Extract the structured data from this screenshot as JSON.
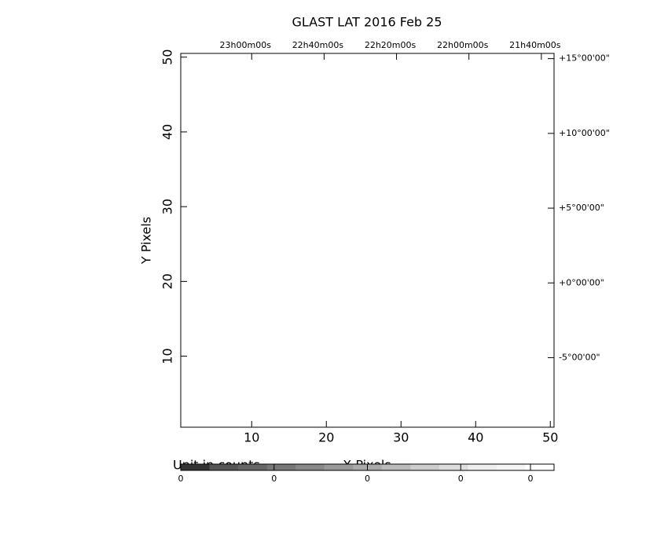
{
  "chart_data": {
    "type": "image",
    "title": "GLAST LAT    2016 Feb 25",
    "xlabel": "X Pixels",
    "ylabel": "Y Pixels",
    "xlim": [
      0.5,
      50.5
    ],
    "ylim": [
      0.5,
      50.5
    ],
    "xticks": [
      10,
      20,
      30,
      40,
      50
    ],
    "yticks": [
      10,
      20,
      30,
      40,
      50
    ],
    "top_ticks": [
      {
        "value": 10,
        "label": "23h00m00s"
      },
      {
        "value": 19.7,
        "label": "22h40m00s"
      },
      {
        "value": 29.4,
        "label": "22h20m00s"
      },
      {
        "value": 39.1,
        "label": "22h00m00s"
      },
      {
        "value": 48.8,
        "label": "21h40m00s"
      }
    ],
    "right_ticks": [
      {
        "value": 49.8,
        "label": "+15°00'00\""
      },
      {
        "value": 39.8,
        "label": "+10°00'00\""
      },
      {
        "value": 29.8,
        "label": "+5°00'00\""
      },
      {
        "value": 19.8,
        "label": "+0°00'00\""
      },
      {
        "value": 9.8,
        "label": "-5°00'00\""
      }
    ],
    "colorbar_label": "Unit in counts",
    "colorbar_ticks": [
      "0",
      "0",
      "0",
      "0",
      "0"
    ],
    "colorbar_colors": [
      "#333333",
      "#555555",
      "#666666",
      "#777777",
      "#888888",
      "#999999",
      "#aaaaaa",
      "#bbbbbb",
      "#cccccc",
      "#dddddd",
      "#eeeeee",
      "#f4f4f4",
      "#ffffff"
    ]
  }
}
